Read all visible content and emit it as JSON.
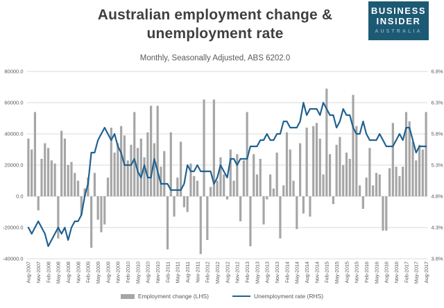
{
  "header": {
    "title_line1": "Australian employment change &",
    "title_line2": "unemployment rate",
    "subtitle": "Monthly, Seasonally Adjusted, ABS 6202.0"
  },
  "logo": {
    "line1": "BUSINESS",
    "line2": "INSIDER",
    "line3": "AUSTRALIA",
    "bg_color": "#1c5a74",
    "accent_color": "#7fa9bd"
  },
  "legend": [
    {
      "label": "Employment change (LHS)",
      "type": "bar",
      "color": "#a6a6a6"
    },
    {
      "label": "Unemployment rate (RHS)",
      "type": "line",
      "color": "#1f6190"
    }
  ],
  "chart_data": {
    "type": "bar",
    "subtype": "combo bar+line, dual axis",
    "title": "Australian employment change & unemployment rate",
    "subtitle": "Monthly, Seasonally Adjusted, ABS 6202.0",
    "x_start": "Aug-2007",
    "x_end": "Aug-2017",
    "x_frequency": "monthly",
    "x_tick_labels": [
      "Aug-2007",
      "Nov-2007",
      "Feb-2008",
      "May-2008",
      "Aug-2008",
      "Nov-2008",
      "Feb-2009",
      "May-2009",
      "Aug-2009",
      "Nov-2009",
      "Feb-2010",
      "May-2010",
      "Aug-2010",
      "Nov-2010",
      "Feb-2011",
      "May-2011",
      "Aug-2011",
      "Nov-2011",
      "Feb-2012",
      "May-2012",
      "Aug-2012",
      "Nov-2012",
      "Feb-2013",
      "May-2013",
      "Aug-2013",
      "Nov-2013",
      "Feb-2014",
      "May-2014",
      "Aug-2014",
      "Nov-2014",
      "Feb-2015",
      "May-2015",
      "Aug-2015",
      "Nov-2015",
      "Feb-2016",
      "May-2016",
      "Aug-2016",
      "Nov-2016",
      "Feb-2017",
      "May-2017",
      "Aug-2017"
    ],
    "left_axis": {
      "ticks": [
        "80000.0",
        "60000.0",
        "40000.0",
        "20000.0",
        "0.0",
        "-20000.0",
        "-40000.0"
      ],
      "max": 80000,
      "min": -40000,
      "grid": true
    },
    "right_axis": {
      "ticks": [
        "6.8%",
        "6.3%",
        "5.8%",
        "5.3%",
        "4.8%",
        "4.3%",
        "3.8%"
      ],
      "max": 6.8,
      "min": 3.8
    },
    "series": [
      {
        "name": "Employment change (LHS)",
        "type": "bar",
        "axis": "left",
        "color": "#a6a6a6",
        "unit": "persons (thousands)",
        "values_thousands": [
          37,
          30,
          54,
          -9,
          24,
          34,
          31,
          23,
          21,
          -27,
          42,
          37,
          20,
          22,
          15,
          10,
          -12,
          5,
          12,
          -33,
          15,
          -15,
          -23,
          -18,
          12,
          44,
          28,
          34,
          45,
          39,
          23,
          33,
          54,
          31,
          37,
          25,
          41,
          58,
          34,
          58,
          19,
          29,
          -34,
          41,
          -13,
          12,
          35,
          -7,
          -10,
          21,
          13,
          10,
          -37,
          62,
          -28,
          6,
          62,
          10,
          25,
          14,
          -2,
          30,
          10,
          27,
          -16,
          23,
          54,
          -32,
          27,
          14,
          24,
          -18,
          -2,
          14,
          5,
          28,
          -27,
          7,
          41,
          30,
          10,
          -21,
          34,
          -11,
          44,
          -13,
          45,
          47,
          37,
          14,
          69,
          27,
          -5,
          33,
          38,
          20,
          28,
          24,
          65,
          45,
          7,
          -8,
          12,
          31,
          7,
          15,
          14,
          -22,
          -22,
          18,
          47,
          19,
          13,
          19,
          54,
          48,
          35,
          23,
          33,
          30,
          54
        ]
      },
      {
        "name": "Unemployment rate (RHS)",
        "type": "line",
        "axis": "right",
        "color": "#1f6190",
        "unit": "percent",
        "values_percent": [
          4.3,
          4.2,
          4.3,
          4.4,
          4.3,
          4.2,
          4.0,
          4.1,
          4.2,
          4.3,
          4.2,
          4.3,
          4.1,
          4.3,
          4.4,
          4.4,
          4.5,
          4.8,
          5.0,
          5.5,
          5.5,
          5.7,
          5.8,
          5.9,
          5.8,
          5.7,
          5.8,
          5.6,
          5.5,
          5.3,
          5.3,
          5.3,
          5.4,
          5.2,
          5.1,
          5.3,
          5.1,
          5.1,
          5.4,
          5.2,
          5.0,
          5.0,
          5.0,
          4.9,
          4.9,
          4.9,
          4.9,
          5.0,
          5.3,
          5.2,
          5.2,
          5.3,
          5.2,
          5.2,
          5.2,
          5.2,
          5.0,
          5.1,
          5.3,
          5.2,
          5.1,
          5.4,
          5.4,
          5.3,
          5.4,
          5.4,
          5.4,
          5.6,
          5.6,
          5.6,
          5.7,
          5.7,
          5.8,
          5.7,
          5.7,
          5.8,
          5.8,
          6.0,
          6.0,
          5.9,
          5.9,
          5.9,
          6.0,
          6.3,
          6.1,
          6.2,
          6.2,
          6.2,
          6.1,
          6.3,
          6.2,
          6.1,
          6.1,
          5.9,
          6.0,
          6.2,
          6.1,
          6.1,
          5.9,
          5.8,
          5.8,
          6.0,
          5.8,
          5.7,
          5.7,
          5.7,
          5.8,
          5.7,
          5.6,
          5.6,
          5.6,
          5.7,
          5.8,
          5.7,
          5.9,
          5.9,
          5.7,
          5.5,
          5.6,
          5.6,
          5.6
        ]
      }
    ],
    "grid_color": "#d9d9d9",
    "legend_position": "bottom"
  }
}
